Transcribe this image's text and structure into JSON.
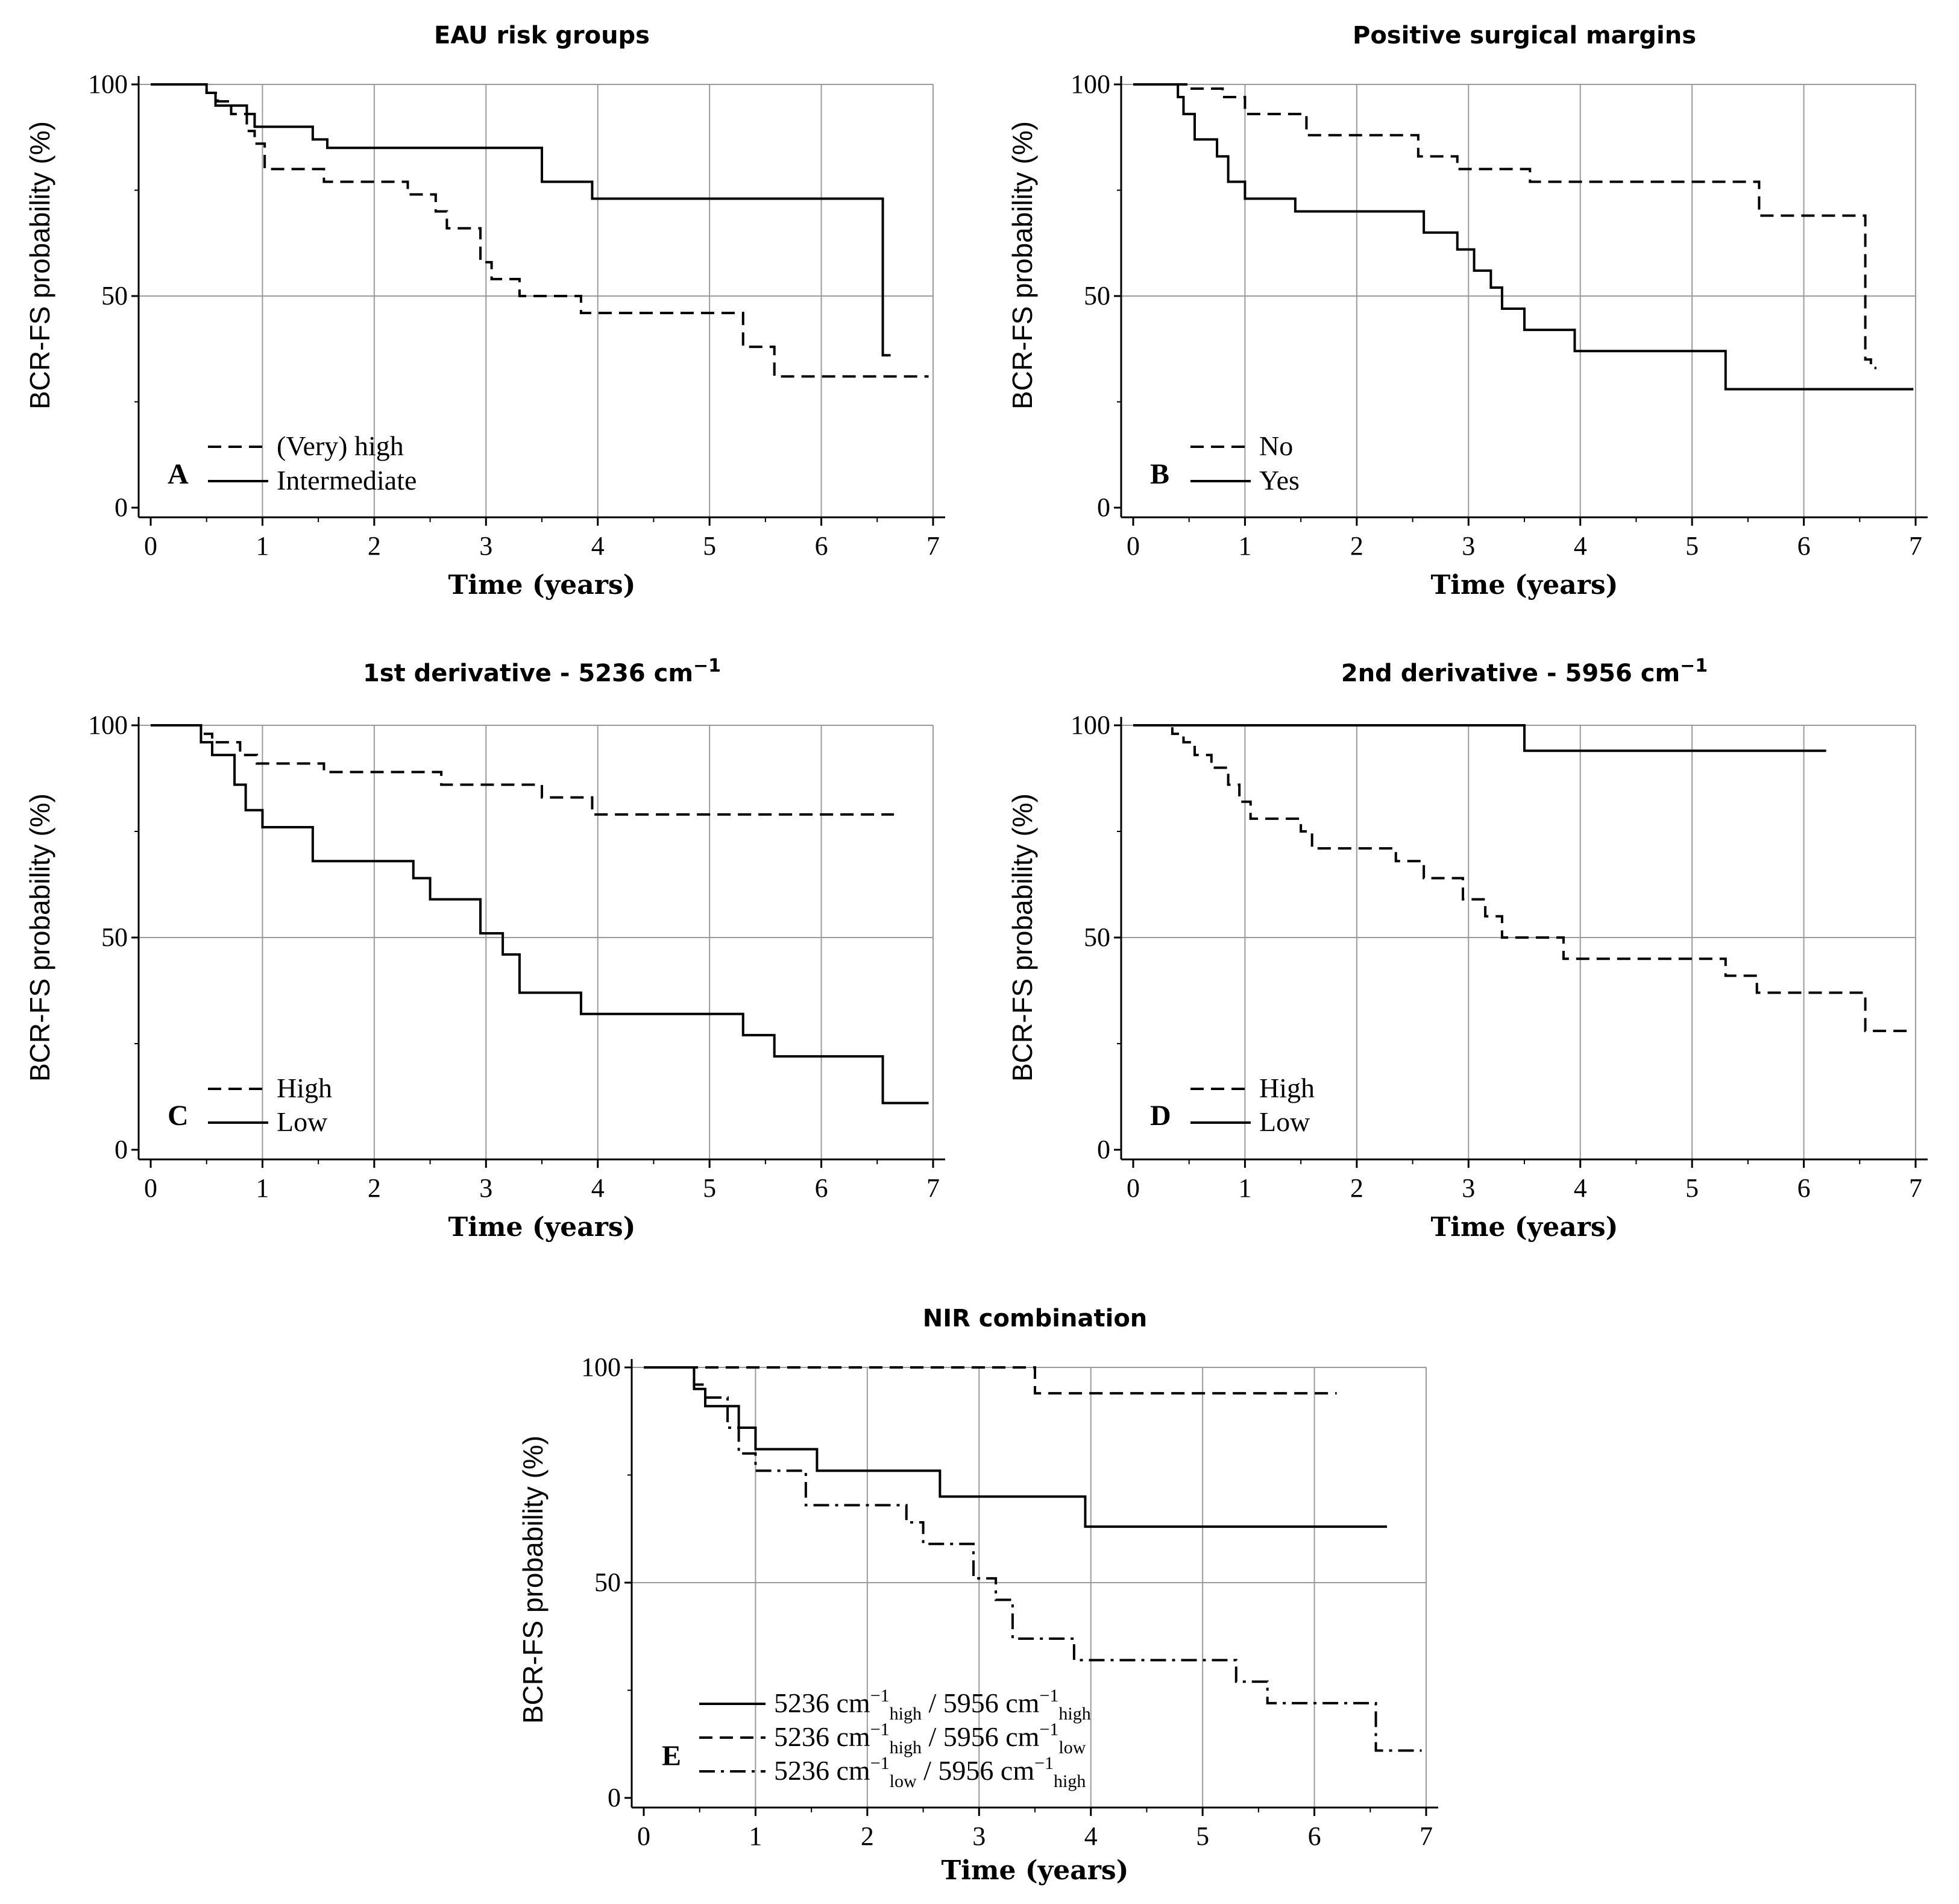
{
  "chart_data": [
    {
      "type": "line",
      "panel": "A",
      "title": "EAU risk groups",
      "xlabel": "Time (years)",
      "ylabel": "BCR-FS probability (%)",
      "xlim": [
        0,
        7
      ],
      "ylim": [
        0,
        100
      ],
      "xticks": [
        "0",
        "1",
        "2",
        "3",
        "4",
        "5",
        "6",
        "7"
      ],
      "yticks": [
        "0",
        "50",
        "100"
      ],
      "grid": true,
      "legend_position": "bottom-left",
      "series": [
        {
          "name": "(Very) high",
          "style": "dashed",
          "x": [
            0,
            0.5,
            0.6,
            0.72,
            0.86,
            0.93,
            1.02,
            1.55,
            2.3,
            2.55,
            2.65,
            2.95,
            3.05,
            3.3,
            3.85,
            5.3,
            5.58,
            6.96
          ],
          "y": [
            100,
            98,
            96,
            93,
            89,
            86,
            80,
            77,
            74,
            70,
            66,
            58,
            54,
            50,
            46,
            38,
            31,
            31
          ]
        },
        {
          "name": "Intermediate",
          "style": "solid",
          "x": [
            0,
            0.5,
            0.58,
            0.86,
            0.93,
            1.45,
            1.58,
            3.5,
            3.95,
            6.55,
            6.62
          ],
          "y": [
            100,
            98,
            95,
            93,
            90,
            87,
            85,
            77,
            73,
            36,
            36
          ]
        }
      ]
    },
    {
      "type": "line",
      "panel": "B",
      "title": "Positive surgical margins",
      "xlabel": "Time (years)",
      "ylabel": "BCR-FS probability (%)",
      "xlim": [
        0,
        7
      ],
      "ylim": [
        0,
        100
      ],
      "xticks": [
        "0",
        "1",
        "2",
        "3",
        "4",
        "5",
        "6",
        "7"
      ],
      "yticks": [
        "0",
        "50",
        "100"
      ],
      "grid": true,
      "legend_position": "bottom-left",
      "series": [
        {
          "name": "No",
          "style": "dashed",
          "x": [
            0,
            0.5,
            0.8,
            1.0,
            1.55,
            2.55,
            2.9,
            3.55,
            5.6,
            6.55,
            6.6,
            6.65
          ],
          "y": [
            100,
            99,
            97,
            93,
            88,
            83,
            80,
            77,
            69,
            35,
            33,
            33
          ]
        },
        {
          "name": "Yes",
          "style": "solid",
          "x": [
            0,
            0.4,
            0.45,
            0.55,
            0.75,
            0.85,
            1.0,
            1.45,
            2.6,
            2.9,
            3.05,
            3.2,
            3.3,
            3.5,
            3.95,
            5.3,
            6.98
          ],
          "y": [
            100,
            97,
            93,
            87,
            83,
            77,
            73,
            70,
            65,
            61,
            56,
            52,
            47,
            42,
            37,
            28,
            28
          ]
        }
      ]
    },
    {
      "type": "line",
      "panel": "C",
      "title": "1st derivative - 5236 cm",
      "title_superscript": "−1",
      "xlabel": "Time (years)",
      "ylabel": "BCR-FS probability (%)",
      "xlim": [
        0,
        7
      ],
      "ylim": [
        0,
        100
      ],
      "xticks": [
        "0",
        "1",
        "2",
        "3",
        "4",
        "5",
        "6",
        "7"
      ],
      "yticks": [
        "0",
        "50",
        "100"
      ],
      "grid": true,
      "legend_position": "bottom-left",
      "series": [
        {
          "name": "High",
          "style": "dashed",
          "x": [
            0,
            0.45,
            0.55,
            0.8,
            0.95,
            1.55,
            2.6,
            3.5,
            3.95,
            6.65
          ],
          "y": [
            100,
            98,
            96,
            93,
            91,
            89,
            86,
            83,
            79,
            79
          ]
        },
        {
          "name": "Low",
          "style": "solid",
          "x": [
            0,
            0.45,
            0.55,
            0.75,
            0.85,
            1.0,
            1.45,
            2.35,
            2.5,
            2.95,
            3.15,
            3.3,
            3.85,
            5.3,
            5.58,
            6.55,
            6.96
          ],
          "y": [
            100,
            96,
            93,
            86,
            80,
            76,
            68,
            64,
            59,
            51,
            46,
            37,
            32,
            27,
            22,
            11,
            11
          ]
        }
      ]
    },
    {
      "type": "line",
      "panel": "D",
      "title": "2nd derivative - 5956 cm",
      "title_superscript": "−1",
      "xlabel": "Time (years)",
      "ylabel": "BCR-FS probability (%)",
      "xlim": [
        0,
        7
      ],
      "ylim": [
        0,
        100
      ],
      "xticks": [
        "0",
        "1",
        "2",
        "3",
        "4",
        "5",
        "6",
        "7"
      ],
      "yticks": [
        "0",
        "50",
        "100"
      ],
      "grid": true,
      "legend_position": "bottom-left",
      "series": [
        {
          "name": "High",
          "style": "dashed",
          "x": [
            0,
            0.35,
            0.45,
            0.55,
            0.7,
            0.85,
            0.95,
            1.05,
            1.5,
            1.6,
            2.35,
            2.6,
            2.95,
            3.15,
            3.3,
            3.85,
            5.3,
            5.58,
            6.55,
            6.98
          ],
          "y": [
            100,
            98,
            96,
            93,
            90,
            86,
            82,
            78,
            75,
            71,
            68,
            64,
            59,
            55,
            50,
            45,
            41,
            37,
            28,
            28
          ]
        },
        {
          "name": "Low",
          "style": "solid",
          "x": [
            0,
            3.5,
            6.2
          ],
          "y": [
            100,
            94,
            94
          ]
        }
      ]
    },
    {
      "type": "line",
      "panel": "E",
      "title": "NIR combination",
      "xlabel": "Time (years)",
      "ylabel": "BCR-FS probability (%)",
      "xlim": [
        0,
        7
      ],
      "ylim": [
        0,
        100
      ],
      "xticks": [
        "0",
        "1",
        "2",
        "3",
        "4",
        "5",
        "6",
        "7"
      ],
      "yticks": [
        "0",
        "50",
        "100"
      ],
      "grid": true,
      "legend_position": "bottom-left",
      "series": [
        {
          "name": "5236 cm−1high / 5956 cm−1high",
          "style": "solid",
          "x": [
            0,
            0.45,
            0.55,
            0.85,
            1.0,
            1.55,
            2.65,
            3.95,
            6.65
          ],
          "y": [
            100,
            95,
            91,
            86,
            81,
            76,
            70,
            63,
            63
          ]
        },
        {
          "name": "5236 cm−1high / 5956 cm−1low",
          "style": "dashed",
          "x": [
            0,
            3.5,
            6.2
          ],
          "y": [
            100,
            94,
            94
          ]
        },
        {
          "name": "5236 cm−1low / 5956 cm−1high",
          "style": "dashdot",
          "x": [
            0,
            0.45,
            0.55,
            0.75,
            0.85,
            1.0,
            1.45,
            2.35,
            2.5,
            2.95,
            3.15,
            3.3,
            3.85,
            5.3,
            5.58,
            6.55,
            6.96
          ],
          "y": [
            100,
            96,
            93,
            86,
            80,
            76,
            68,
            64,
            59,
            51,
            46,
            37,
            32,
            27,
            22,
            11,
            11
          ]
        }
      ]
    }
  ],
  "legend_e": [
    {
      "a": "5236 cm",
      "a_sup": "−1",
      "a_sub": "high",
      "sep": "/",
      "b": "5956 cm",
      "b_sup": "−1",
      "b_sub": "high"
    },
    {
      "a": "5236 cm",
      "a_sup": "−1",
      "a_sub": "high",
      "sep": "/",
      "b": "5956 cm",
      "b_sup": "−1",
      "b_sub": "low"
    },
    {
      "a": "5236 cm",
      "a_sup": "−1",
      "a_sub": "low",
      "sep": "/",
      "b": "5956 cm",
      "b_sup": "−1",
      "b_sub": "high"
    }
  ]
}
